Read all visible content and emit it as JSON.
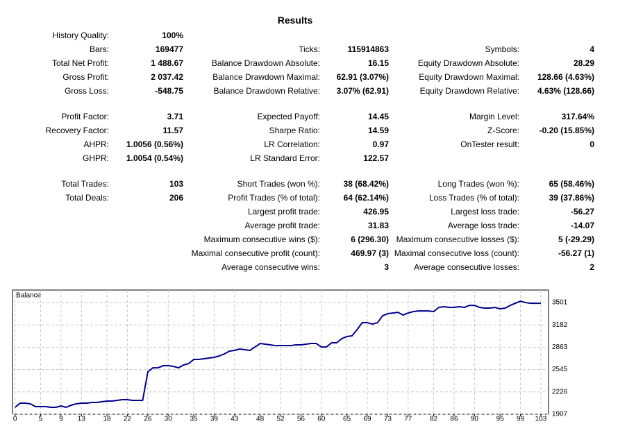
{
  "title": "Results",
  "blocks": [
    [
      [
        {
          "label": "History Quality:",
          "value": "100%"
        },
        null,
        null
      ],
      [
        {
          "label": "Bars:",
          "value": "169477"
        },
        {
          "label": "Ticks:",
          "value": "115914863"
        },
        {
          "label": "Symbols:",
          "value": "4"
        }
      ],
      [
        {
          "label": "Total Net Profit:",
          "value": "1 488.67"
        },
        {
          "label": "Balance Drawdown Absolute:",
          "value": "16.15"
        },
        {
          "label": "Equity Drawdown Absolute:",
          "value": "28.29"
        }
      ],
      [
        {
          "label": "Gross Profit:",
          "value": "2 037.42"
        },
        {
          "label": "Balance Drawdown Maximal:",
          "value": "62.91 (3.07%)"
        },
        {
          "label": "Equity Drawdown Maximal:",
          "value": "128.66 (4.63%)"
        }
      ],
      [
        {
          "label": "Gross Loss:",
          "value": "-548.75"
        },
        {
          "label": "Balance Drawdown Relative:",
          "value": "3.07% (62.91)"
        },
        {
          "label": "Equity Drawdown Relative:",
          "value": "4.63% (128.66)"
        }
      ]
    ],
    [
      [
        {
          "label": "Profit Factor:",
          "value": "3.71"
        },
        {
          "label": "Expected Payoff:",
          "value": "14.45"
        },
        {
          "label": "Margin Level:",
          "value": "317.64%"
        }
      ],
      [
        {
          "label": "Recovery Factor:",
          "value": "11.57"
        },
        {
          "label": "Sharpe Ratio:",
          "value": "14.59"
        },
        {
          "label": "Z-Score:",
          "value": "-0.20 (15.85%)"
        }
      ],
      [
        {
          "label": "AHPR:",
          "value": "1.0056 (0.56%)"
        },
        {
          "label": "LR Correlation:",
          "value": "0.97"
        },
        {
          "label": "OnTester result:",
          "value": "0"
        }
      ],
      [
        {
          "label": "GHPR:",
          "value": "1.0054 (0.54%)"
        },
        {
          "label": "LR Standard Error:",
          "value": "122.57"
        },
        null
      ]
    ],
    [
      [
        {
          "label": "Total Trades:",
          "value": "103"
        },
        {
          "label": "Short Trades (won %):",
          "value": "38 (68.42%)"
        },
        {
          "label": "Long Trades (won %):",
          "value": "65 (58.46%)"
        }
      ],
      [
        {
          "label": "Total Deals:",
          "value": "206"
        },
        {
          "label": "Profit Trades (% of total):",
          "value": "64 (62.14%)"
        },
        {
          "label": "Loss Trades (% of total):",
          "value": "39 (37.86%)"
        }
      ],
      [
        null,
        {
          "label": "Largest profit trade:",
          "value": "426.95"
        },
        {
          "label": "Largest loss trade:",
          "value": "-56.27"
        }
      ],
      [
        null,
        {
          "label": "Average profit trade:",
          "value": "31.83"
        },
        {
          "label": "Average loss trade:",
          "value": "-14.07"
        }
      ],
      [
        null,
        {
          "label": "Maximum consecutive wins ($):",
          "value": "6 (296.30)"
        },
        {
          "label": "Maximum consecutive losses ($):",
          "value": "5 (-29.29)"
        }
      ],
      [
        null,
        {
          "label": "Maximal consecutive profit (count):",
          "value": "469.97 (3)"
        },
        {
          "label": "Maximal consecutive loss (count):",
          "value": "-56.27 (1)"
        }
      ],
      [
        null,
        {
          "label": "Average consecutive wins:",
          "value": "3"
        },
        {
          "label": "Average consecutive losses:",
          "value": "2"
        }
      ]
    ]
  ],
  "chart_data": {
    "type": "line",
    "title": "Balance",
    "grid": true,
    "x": [
      0,
      1,
      2,
      3,
      4,
      5,
      6,
      7,
      8,
      9,
      10,
      11,
      12,
      13,
      14,
      15,
      16,
      17,
      18,
      19,
      20,
      21,
      22,
      23,
      24,
      25,
      26,
      27,
      28,
      29,
      30,
      31,
      32,
      33,
      34,
      35,
      36,
      37,
      38,
      39,
      40,
      41,
      42,
      43,
      44,
      45,
      46,
      47,
      48,
      49,
      50,
      51,
      52,
      53,
      54,
      55,
      56,
      57,
      58,
      59,
      60,
      61,
      62,
      63,
      64,
      65,
      66,
      67,
      68,
      69,
      70,
      71,
      72,
      73,
      74,
      75,
      76,
      77,
      78,
      79,
      80,
      81,
      82,
      83,
      84,
      85,
      86,
      87,
      88,
      89,
      90,
      91,
      92,
      93,
      94,
      95,
      96,
      97,
      98,
      99,
      100,
      101,
      102,
      103
    ],
    "series": [
      {
        "name": "Balance",
        "color": "#00008b",
        "values": [
          2006,
          2065,
          2065,
          2056,
          2016,
          2016,
          2016,
          2006,
          2006,
          2026,
          2006,
          2036,
          2056,
          2065,
          2065,
          2075,
          2075,
          2085,
          2095,
          2095,
          2105,
          2115,
          2115,
          2105,
          2105,
          2105,
          2511,
          2570,
          2570,
          2600,
          2600,
          2590,
          2570,
          2610,
          2630,
          2689,
          2689,
          2699,
          2709,
          2719,
          2739,
          2768,
          2808,
          2818,
          2838,
          2828,
          2818,
          2867,
          2917,
          2907,
          2897,
          2887,
          2887,
          2887,
          2887,
          2897,
          2897,
          2907,
          2917,
          2917,
          2867,
          2867,
          2927,
          2927,
          2986,
          3016,
          3026,
          3115,
          3214,
          3214,
          3194,
          3214,
          3313,
          3343,
          3352,
          3362,
          3323,
          3352,
          3372,
          3382,
          3382,
          3382,
          3372,
          3432,
          3442,
          3432,
          3432,
          3442,
          3432,
          3461,
          3461,
          3432,
          3422,
          3422,
          3432,
          3412,
          3422,
          3461,
          3491,
          3521,
          3501,
          3491,
          3491,
          3491
        ]
      }
    ],
    "xlim": [
      -0.5,
      104.5
    ],
    "xticks": [
      0,
      5,
      9,
      13,
      18,
      22,
      26,
      30,
      35,
      39,
      43,
      48,
      52,
      56,
      60,
      65,
      69,
      73,
      77,
      82,
      86,
      90,
      95,
      99,
      103
    ],
    "ylim": [
      1907,
      3680
    ],
    "yticks": [
      1907,
      2226,
      2545,
      2863,
      3182,
      3501
    ]
  }
}
